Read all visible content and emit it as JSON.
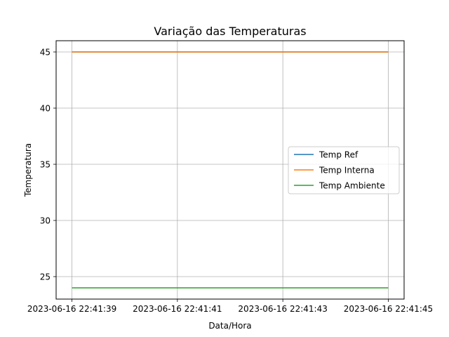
{
  "chart_data": {
    "type": "line",
    "title": "Variação das Temperaturas",
    "xlabel": "Data/Hora",
    "ylabel": "Temperatura",
    "x": [
      "2023-06-16 22:41:39",
      "2023-06-16 22:41:41",
      "2023-06-16 22:41:43",
      "2023-06-16 22:41:45"
    ],
    "x_ticks": [
      "2023-06-16 22:41:39",
      "2023-06-16 22:41:41",
      "2023-06-16 22:41:43",
      "2023-06-16 22:41:45"
    ],
    "xlim": [
      "2023-06-16 22:41:38.7",
      "2023-06-16 22:41:45.3"
    ],
    "y_ticks": [
      25,
      30,
      35,
      40,
      45
    ],
    "ylim": [
      23,
      46
    ],
    "grid": true,
    "legend_position": "center-right",
    "series": [
      {
        "name": "Temp Ref",
        "color": "#1f77b4",
        "values": [
          45,
          45,
          45,
          45
        ]
      },
      {
        "name": "Temp Interna",
        "color": "#ff7f0e",
        "values": [
          45,
          45,
          45,
          45
        ]
      },
      {
        "name": "Temp Ambiente",
        "color": "#2ca02c",
        "values": [
          24,
          24,
          24,
          24
        ]
      }
    ]
  }
}
